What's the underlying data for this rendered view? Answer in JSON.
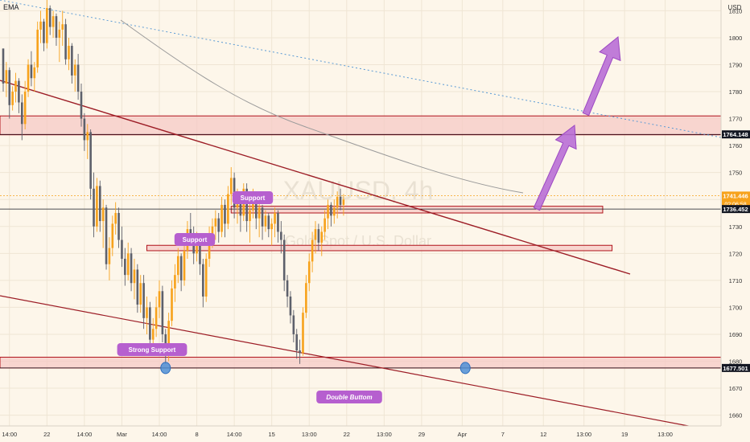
{
  "indicator_label": "EMA",
  "currency_label": "USD",
  "watermark": {
    "symbol_text": "XAUUSD, 4h",
    "subtitle_text": "Gold Spot / U.S. Dollar"
  },
  "colors": {
    "background": "#fdf6ea",
    "bull": "#f7a21b",
    "bear": "#5d606b",
    "zone_fill": "#f5c9c6",
    "zone_border": "#b0131b",
    "trendline": "#9c1c25",
    "dotted_line": "#5b9bd5",
    "ema": "#9a9a9a",
    "arrow": "#b96fd6",
    "label_bg": "#b65fcf",
    "price_tag_dark": "#131722",
    "price_tag_current": "#f7a21b",
    "marker": "#4f8fd6"
  },
  "chart_data": {
    "type": "candlestick",
    "symbol": "XAUUSD",
    "timeframe": "4h",
    "y_axis": {
      "ylim": [
        1656,
        1814
      ],
      "ticks": [
        1660,
        1670,
        1680,
        1690,
        1700,
        1710,
        1720,
        1730,
        1740,
        1750,
        1760,
        1770,
        1780,
        1790,
        1800,
        1810
      ]
    },
    "x_axis": {
      "ticks": [
        {
          "bar": 2,
          "label": "14:00"
        },
        {
          "bar": 14,
          "label": "22"
        },
        {
          "bar": 26,
          "label": "14:00"
        },
        {
          "bar": 38,
          "label": "Mar"
        },
        {
          "bar": 50,
          "label": "14:00"
        },
        {
          "bar": 62,
          "label": "8"
        },
        {
          "bar": 74,
          "label": "14:00"
        },
        {
          "bar": 86,
          "label": "15"
        },
        {
          "bar": 98,
          "label": "13:00"
        },
        {
          "bar": 110,
          "label": "22"
        },
        {
          "bar": 122,
          "label": "13:00"
        },
        {
          "bar": 134,
          "label": "29"
        },
        {
          "bar": 147,
          "label": "Apr"
        },
        {
          "bar": 160,
          "label": "7"
        },
        {
          "bar": 173,
          "label": "12"
        },
        {
          "bar": 186,
          "label": "13:00"
        },
        {
          "bar": 199,
          "label": "19"
        },
        {
          "bar": 212,
          "label": "13:00"
        }
      ]
    },
    "price_tags": {
      "resistance_level": "1764.148",
      "current_price": "1741.446",
      "countdown": "02:06:58",
      "support_level": "1736.452",
      "low_level": "1677.501"
    },
    "annotations": {
      "support_1": "Support",
      "support_2": "Support",
      "strong_support": "Strong Support",
      "pattern": "Double Buttom"
    },
    "zones": [
      {
        "name": "resistance-zone",
        "from": 1764,
        "to": 1771
      },
      {
        "name": "support-zone-upper",
        "from": 1735,
        "to": 1737.5
      },
      {
        "name": "support-zone-middle",
        "from": 1721,
        "to": 1723
      },
      {
        "name": "strong-support-zone",
        "from": 1677.5,
        "to": 1681.5
      }
    ],
    "candles": [
      [
        1796,
        1796,
        1780,
        1783
      ],
      [
        1783,
        1791,
        1778,
        1788
      ],
      [
        1788,
        1789,
        1770,
        1775
      ],
      [
        1775,
        1782,
        1773,
        1780
      ],
      [
        1780,
        1787,
        1776,
        1784
      ],
      [
        1784,
        1785,
        1772,
        1776
      ],
      [
        1776,
        1779,
        1762,
        1768
      ],
      [
        1768,
        1784,
        1766,
        1780
      ],
      [
        1780,
        1792,
        1778,
        1790
      ],
      [
        1790,
        1795,
        1782,
        1785
      ],
      [
        1785,
        1791,
        1780,
        1789
      ],
      [
        1789,
        1806,
        1787,
        1803
      ],
      [
        1803,
        1810,
        1798,
        1806
      ],
      [
        1806,
        1807,
        1795,
        1798
      ],
      [
        1798,
        1814,
        1796,
        1811
      ],
      [
        1811,
        1812,
        1801,
        1804
      ],
      [
        1804,
        1810,
        1800,
        1808
      ],
      [
        1808,
        1809,
        1797,
        1800
      ],
      [
        1800,
        1806,
        1791,
        1803
      ],
      [
        1803,
        1810,
        1797,
        1805
      ],
      [
        1805,
        1807,
        1790,
        1792
      ],
      [
        1792,
        1800,
        1788,
        1797
      ],
      [
        1797,
        1798,
        1783,
        1786
      ],
      [
        1786,
        1792,
        1780,
        1790
      ],
      [
        1790,
        1794,
        1777,
        1780
      ],
      [
        1780,
        1783,
        1767,
        1770
      ],
      [
        1770,
        1772,
        1758,
        1762
      ],
      [
        1762,
        1768,
        1755,
        1765
      ],
      [
        1765,
        1766,
        1740,
        1744
      ],
      [
        1744,
        1750,
        1726,
        1730
      ],
      [
        1730,
        1748,
        1728,
        1745
      ],
      [
        1745,
        1747,
        1728,
        1732
      ],
      [
        1732,
        1740,
        1722,
        1737
      ],
      [
        1737,
        1738,
        1714,
        1716
      ],
      [
        1716,
        1726,
        1710,
        1722
      ],
      [
        1722,
        1734,
        1719,
        1731
      ],
      [
        1731,
        1739,
        1727,
        1735
      ],
      [
        1735,
        1737,
        1722,
        1725
      ],
      [
        1725,
        1730,
        1715,
        1718
      ],
      [
        1718,
        1722,
        1708,
        1712
      ],
      [
        1712,
        1724,
        1710,
        1720
      ],
      [
        1720,
        1722,
        1706,
        1709
      ],
      [
        1709,
        1718,
        1703,
        1714
      ],
      [
        1714,
        1716,
        1698,
        1701
      ],
      [
        1701,
        1712,
        1698,
        1709
      ],
      [
        1709,
        1712,
        1692,
        1696
      ],
      [
        1696,
        1704,
        1690,
        1700
      ],
      [
        1700,
        1702,
        1684,
        1688
      ],
      [
        1688,
        1696,
        1684,
        1692
      ],
      [
        1692,
        1704,
        1689,
        1700
      ],
      [
        1700,
        1710,
        1696,
        1706
      ],
      [
        1706,
        1708,
        1687,
        1690
      ],
      [
        1690,
        1692,
        1679,
        1682
      ],
      [
        1682,
        1698,
        1680,
        1695
      ],
      [
        1695,
        1710,
        1693,
        1707
      ],
      [
        1707,
        1716,
        1702,
        1712
      ],
      [
        1712,
        1722,
        1709,
        1719
      ],
      [
        1719,
        1720,
        1706,
        1710
      ],
      [
        1710,
        1724,
        1708,
        1721
      ],
      [
        1721,
        1732,
        1718,
        1729
      ],
      [
        1729,
        1735,
        1724,
        1726
      ],
      [
        1726,
        1730,
        1716,
        1720
      ],
      [
        1720,
        1728,
        1717,
        1725
      ],
      [
        1725,
        1727,
        1712,
        1716
      ],
      [
        1716,
        1718,
        1700,
        1704
      ],
      [
        1704,
        1720,
        1702,
        1718
      ],
      [
        1718,
        1730,
        1715,
        1727
      ],
      [
        1727,
        1733,
        1722,
        1730
      ],
      [
        1730,
        1736,
        1725,
        1733
      ],
      [
        1733,
        1735,
        1724,
        1728
      ],
      [
        1728,
        1741,
        1726,
        1738
      ],
      [
        1738,
        1740,
        1726,
        1731
      ],
      [
        1731,
        1745,
        1729,
        1742
      ],
      [
        1742,
        1752,
        1738,
        1748
      ],
      [
        1748,
        1750,
        1733,
        1737
      ],
      [
        1737,
        1744,
        1731,
        1741
      ],
      [
        1741,
        1743,
        1728,
        1734
      ],
      [
        1734,
        1746,
        1732,
        1744
      ],
      [
        1744,
        1746,
        1728,
        1732
      ],
      [
        1732,
        1739,
        1724,
        1736
      ],
      [
        1736,
        1744,
        1733,
        1741
      ],
      [
        1741,
        1742,
        1729,
        1733
      ],
      [
        1733,
        1740,
        1726,
        1737
      ],
      [
        1737,
        1738,
        1725,
        1730
      ],
      [
        1730,
        1736,
        1728,
        1734
      ],
      [
        1734,
        1735,
        1726,
        1729
      ],
      [
        1729,
        1733,
        1723,
        1731
      ],
      [
        1731,
        1737,
        1726,
        1735
      ],
      [
        1735,
        1736,
        1724,
        1728
      ],
      [
        1728,
        1732,
        1720,
        1725
      ],
      [
        1725,
        1727,
        1706,
        1710
      ],
      [
        1710,
        1712,
        1700,
        1704
      ],
      [
        1704,
        1706,
        1694,
        1697
      ],
      [
        1697,
        1699,
        1687,
        1690
      ],
      [
        1690,
        1692,
        1681,
        1684
      ],
      [
        1684,
        1688,
        1679,
        1683
      ],
      [
        1683,
        1700,
        1682,
        1698
      ],
      [
        1698,
        1712,
        1696,
        1709
      ],
      [
        1709,
        1720,
        1706,
        1717
      ],
      [
        1717,
        1728,
        1713,
        1725
      ],
      [
        1725,
        1732,
        1720,
        1729
      ],
      [
        1729,
        1731,
        1721,
        1724
      ],
      [
        1724,
        1730,
        1719,
        1728
      ],
      [
        1728,
        1736,
        1725,
        1733
      ],
      [
        1733,
        1740,
        1729,
        1738
      ],
      [
        1738,
        1739,
        1730,
        1734
      ],
      [
        1734,
        1740,
        1731,
        1737
      ],
      [
        1737,
        1743,
        1733,
        1741
      ],
      [
        1741,
        1744,
        1736,
        1738
      ],
      [
        1738,
        1742,
        1734,
        1740
      ]
    ]
  }
}
